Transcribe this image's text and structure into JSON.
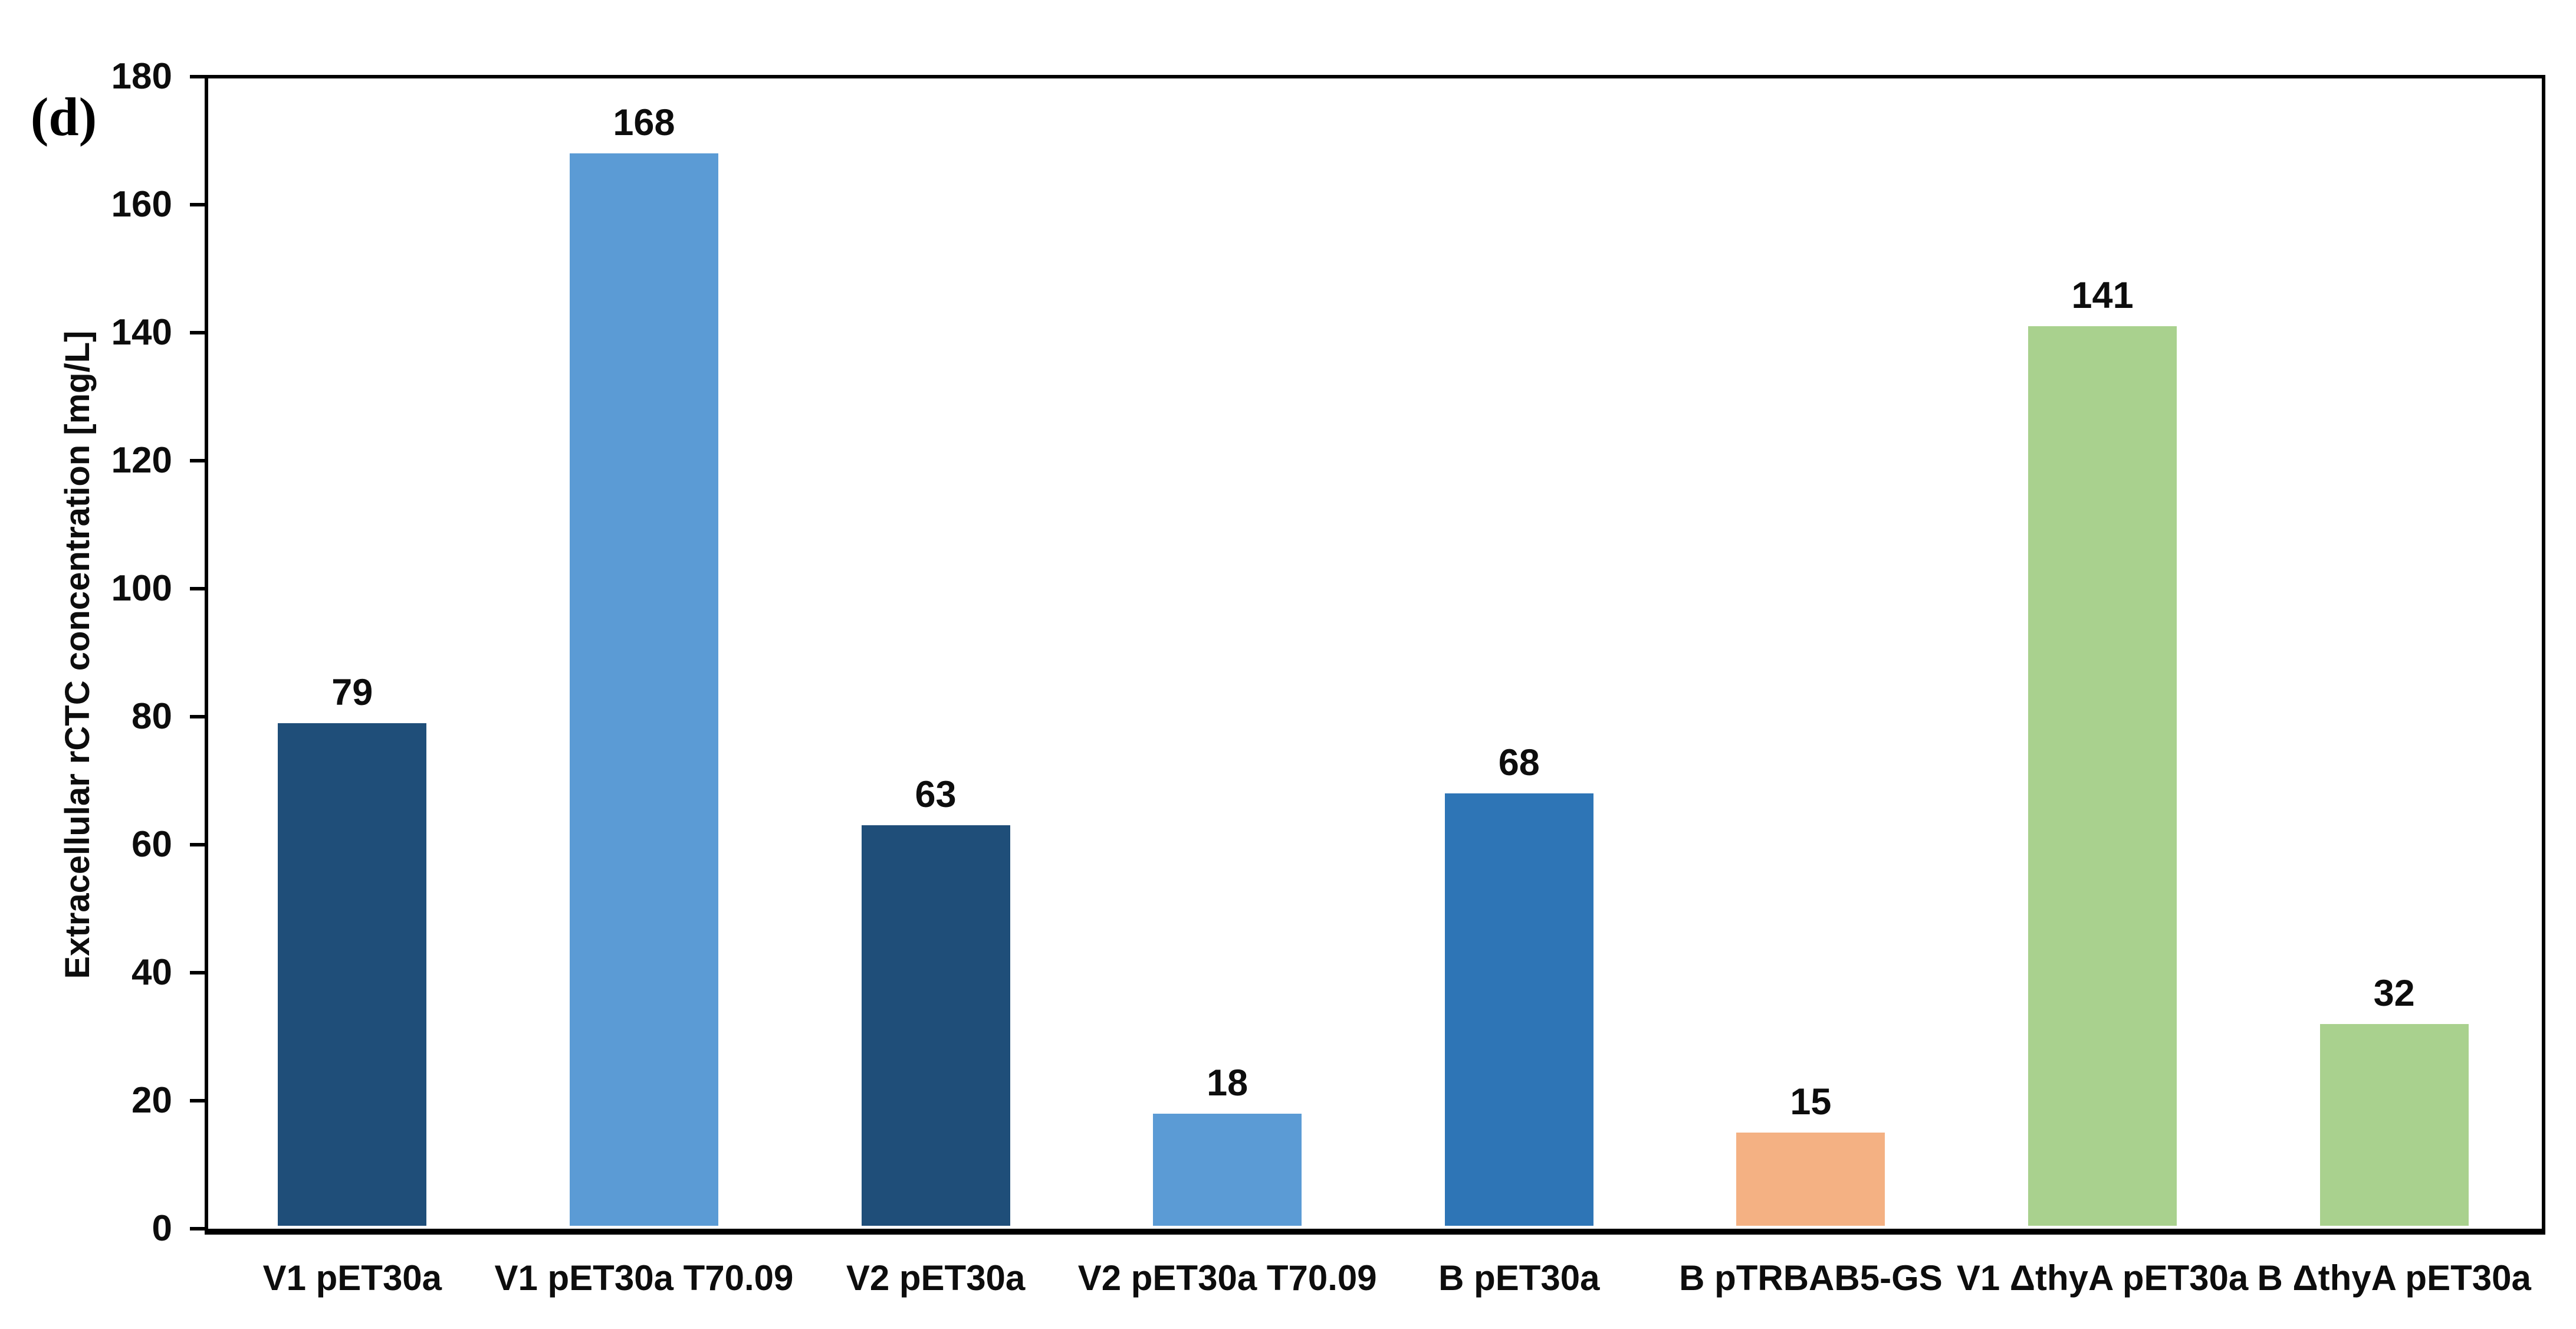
{
  "panel_label": "(d)",
  "colors": {
    "background": "#FFFFFF",
    "axis": "#000000",
    "text": "#0D0D0D",
    "navy": "#1F4E79",
    "light_blue": "#5B9BD5",
    "medium_blue": "#2E75B6",
    "orange": "#F4B183",
    "green": "#A9D18E"
  },
  "chart_data": {
    "type": "bar",
    "title": "",
    "xlabel": "",
    "ylabel": "Extracellular rCTC concentration [mg/L]",
    "ylim": [
      0,
      180
    ],
    "ytick_step": 20,
    "grid": false,
    "legend": false,
    "categories": [
      "V1 pET30a",
      "V1 pET30a T70.09",
      "V2 pET30a",
      "V2 pET30a T70.09",
      "B pET30a",
      "B pTRBAB5-GS",
      "V1 ΔthyA pET30a",
      "B ΔthyA pET30a"
    ],
    "values": [
      79,
      168,
      63,
      18,
      68,
      15,
      141,
      32
    ],
    "value_labels": [
      "79",
      "168",
      "63",
      "18",
      "68",
      "15",
      "141",
      "32"
    ],
    "bar_colors": [
      "#1F4E79",
      "#5B9BD5",
      "#1F4E79",
      "#5B9BD5",
      "#2E75B6",
      "#F4B183",
      "#A9D18E",
      "#A9D18E"
    ]
  }
}
